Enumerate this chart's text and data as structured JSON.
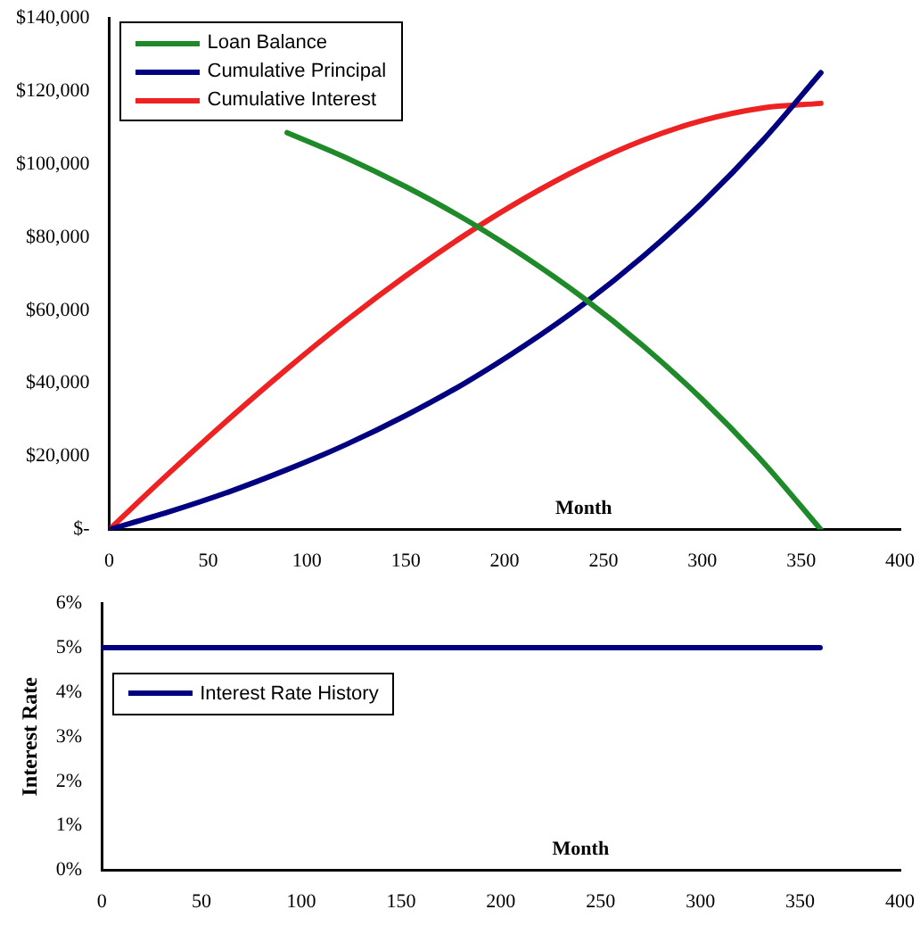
{
  "chart_data": [
    {
      "type": "line",
      "xlabel": "Month",
      "x": [
        0,
        30,
        60,
        90,
        120,
        150,
        180,
        210,
        240,
        270,
        300,
        330,
        360
      ],
      "series": [
        {
          "name": "Loan Balance",
          "color": "#1f8a2a",
          "x": [
            90,
            120,
            150,
            180,
            210,
            240,
            270,
            300,
            330,
            360
          ],
          "values": [
            108600,
            101700,
            93800,
            84900,
            74700,
            63300,
            50300,
            35600,
            18900,
            0
          ]
        },
        {
          "name": "Cumulative Principal",
          "color": "#000080",
          "values": [
            0,
            4800,
            10200,
            16400,
            23300,
            31200,
            40100,
            50300,
            61700,
            74700,
            89400,
            106100,
            125000
          ]
        },
        {
          "name": "Cumulative Interest",
          "color": "#ee2222",
          "values": [
            0,
            15300,
            30000,
            44000,
            57200,
            69400,
            80600,
            90600,
            99300,
            106500,
            111900,
            115300,
            116600
          ]
        }
      ],
      "xlim": [
        0,
        400
      ],
      "xticks": [
        0,
        50,
        100,
        150,
        200,
        250,
        300,
        350,
        400
      ],
      "ylim": [
        0,
        140000
      ],
      "yticks": [
        {
          "value": 0,
          "label": "$-"
        },
        {
          "value": 20000,
          "label": "$20,000"
        },
        {
          "value": 40000,
          "label": "$40,000"
        },
        {
          "value": 60000,
          "label": "$60,000"
        },
        {
          "value": 80000,
          "label": "$80,000"
        },
        {
          "value": 100000,
          "label": "$100,000"
        },
        {
          "value": 120000,
          "label": "$120,000"
        },
        {
          "value": 140000,
          "label": "$140,000"
        }
      ],
      "grid": false,
      "legend": "top left",
      "marker": "none",
      "line_style": "solid"
    },
    {
      "type": "line",
      "xlabel": "Month",
      "ylabel": "Interest Rate",
      "x": [
        0,
        360
      ],
      "series": [
        {
          "name": "Interest Rate History",
          "color": "#000080",
          "values": [
            5,
            5
          ]
        }
      ],
      "xlim": [
        0,
        400
      ],
      "xticks": [
        0,
        50,
        100,
        150,
        200,
        250,
        300,
        350,
        400
      ],
      "ylim": [
        0,
        6
      ],
      "yticks": [
        {
          "value": 0,
          "label": "0%"
        },
        {
          "value": 1,
          "label": "1%"
        },
        {
          "value": 2,
          "label": "2%"
        },
        {
          "value": 3,
          "label": "3%"
        },
        {
          "value": 4,
          "label": "4%"
        },
        {
          "value": 5,
          "label": "5%"
        },
        {
          "value": 6,
          "label": "6%"
        }
      ],
      "grid": false,
      "legend": "top left",
      "marker": "none",
      "line_style": "solid"
    }
  ]
}
